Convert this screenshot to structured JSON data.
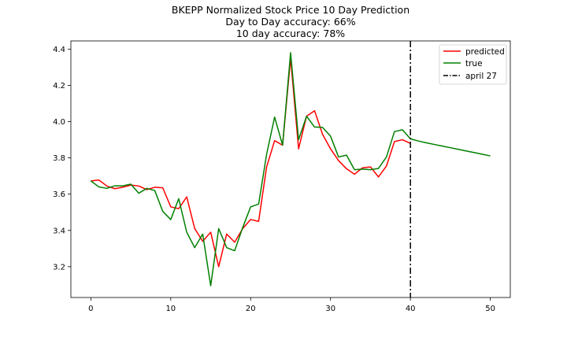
{
  "chart_data": {
    "type": "line",
    "title_lines": [
      "BKEPP Normalized Stock Price 10 Day Prediction",
      "Day to Day accuracy: 66%",
      "10 day accuracy: 78%"
    ],
    "xlabel": "",
    "ylabel": "",
    "xlim": [
      -2.5,
      52.5
    ],
    "ylim": [
      3.03,
      4.445
    ],
    "xticks": [
      0,
      10,
      20,
      30,
      40,
      50
    ],
    "yticks": [
      3.2,
      3.4,
      3.6,
      3.8,
      4.0,
      4.2,
      4.4
    ],
    "ytick_labels": [
      "3.2",
      "3.4",
      "3.6",
      "3.8",
      "4.0",
      "4.2",
      "4.4"
    ],
    "grid": false,
    "legend_position": "top-right",
    "series": [
      {
        "name": "predicted",
        "color": "#ff0000",
        "style": "solid",
        "x": [
          0,
          1,
          2,
          3,
          4,
          5,
          6,
          7,
          8,
          9,
          10,
          11,
          12,
          13,
          14,
          15,
          16,
          17,
          18,
          19,
          20,
          21,
          22,
          23,
          24,
          25,
          26,
          27,
          28,
          29,
          30,
          31,
          32,
          33,
          34,
          35,
          36,
          37,
          38,
          39,
          40
        ],
        "y": [
          3.673,
          3.678,
          3.645,
          3.63,
          3.638,
          3.65,
          3.645,
          3.625,
          3.638,
          3.635,
          3.53,
          3.52,
          3.585,
          3.41,
          3.34,
          3.39,
          3.2,
          3.38,
          3.335,
          3.41,
          3.46,
          3.45,
          3.75,
          3.895,
          3.87,
          4.35,
          3.85,
          4.03,
          4.06,
          3.93,
          3.85,
          3.785,
          3.74,
          3.71,
          3.745,
          3.75,
          3.695,
          3.755,
          3.89,
          3.9,
          3.88
        ]
      },
      {
        "name": "true",
        "color": "#008000",
        "style": "solid",
        "x": [
          0,
          1,
          2,
          3,
          4,
          5,
          6,
          7,
          8,
          9,
          10,
          11,
          12,
          13,
          14,
          15,
          16,
          17,
          18,
          19,
          20,
          21,
          22,
          23,
          24,
          25,
          26,
          27,
          28,
          29,
          30,
          31,
          32,
          33,
          34,
          35,
          36,
          37,
          38,
          39,
          40,
          41,
          42,
          43,
          44,
          45,
          46,
          47,
          48,
          49,
          50
        ],
        "y": [
          3.673,
          3.64,
          3.632,
          3.646,
          3.646,
          3.655,
          3.605,
          3.632,
          3.62,
          3.505,
          3.46,
          3.575,
          3.39,
          3.305,
          3.38,
          3.095,
          3.41,
          3.305,
          3.288,
          3.415,
          3.53,
          3.545,
          3.82,
          4.025,
          3.87,
          4.38,
          3.9,
          4.03,
          3.97,
          3.968,
          3.92,
          3.805,
          3.815,
          3.735,
          3.738,
          3.735,
          3.742,
          3.805,
          3.945,
          3.955,
          3.905,
          3.893,
          3.883,
          3.874,
          3.865,
          3.856,
          3.847,
          3.838,
          3.829,
          3.82,
          3.811
        ]
      }
    ],
    "vlines": [
      {
        "name": "april 27",
        "x": 40,
        "color": "#000000",
        "style": "dashdot"
      }
    ]
  }
}
